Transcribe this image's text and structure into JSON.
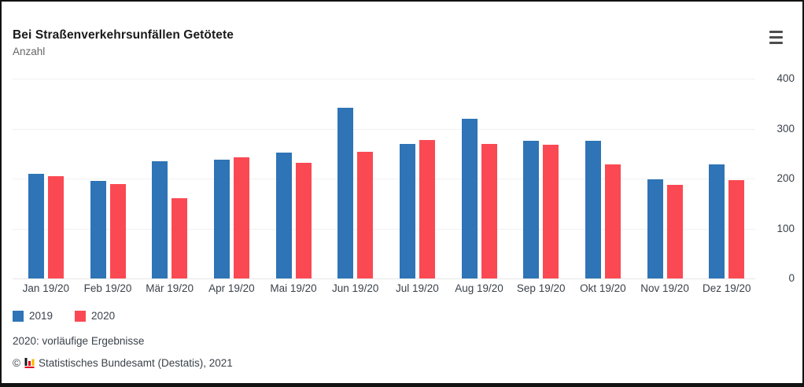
{
  "header": {
    "title": "Bei Straßenverkehrsunfällen Getötete",
    "subtitle": "Anzahl",
    "menu_icon": "hamburger-icon"
  },
  "chart_data": {
    "type": "bar",
    "title": "Bei Straßenverkehrsunfällen Getötete",
    "ylabel": "Anzahl",
    "xlabel": "",
    "ylim": [
      0,
      400
    ],
    "yticks": [
      0,
      100,
      200,
      300,
      400
    ],
    "grid": true,
    "legend_position": "bottom-left",
    "categories": [
      "Jan 19/20",
      "Feb 19/20",
      "Mär 19/20",
      "Apr 19/20",
      "Mai 19/20",
      "Jun 19/20",
      "Jul 19/20",
      "Aug 19/20",
      "Sep 19/20",
      "Okt 19/20",
      "Nov 19/20",
      "Dez 19/20"
    ],
    "series": [
      {
        "name": "2019",
        "color": "#2e74b6",
        "values": [
          210,
          195,
          234,
          238,
          252,
          342,
          269,
          319,
          275,
          275,
          199,
          229
        ]
      },
      {
        "name": "2020",
        "color": "#fb4953",
        "values": [
          205,
          189,
          160,
          243,
          231,
          254,
          277,
          270,
          268,
          229,
          188,
          197
        ]
      }
    ]
  },
  "legend": {
    "items": [
      {
        "label": "2019",
        "color": "#2e74b6"
      },
      {
        "label": "2020",
        "color": "#fb4953"
      }
    ]
  },
  "footnote": {
    "text": "2020: vorläufige Ergebnisse"
  },
  "copyright": {
    "prefix": "©",
    "icon": "destatis-logo-icon",
    "text": "Statistisches Bundesamt (Destatis), 2021"
  }
}
